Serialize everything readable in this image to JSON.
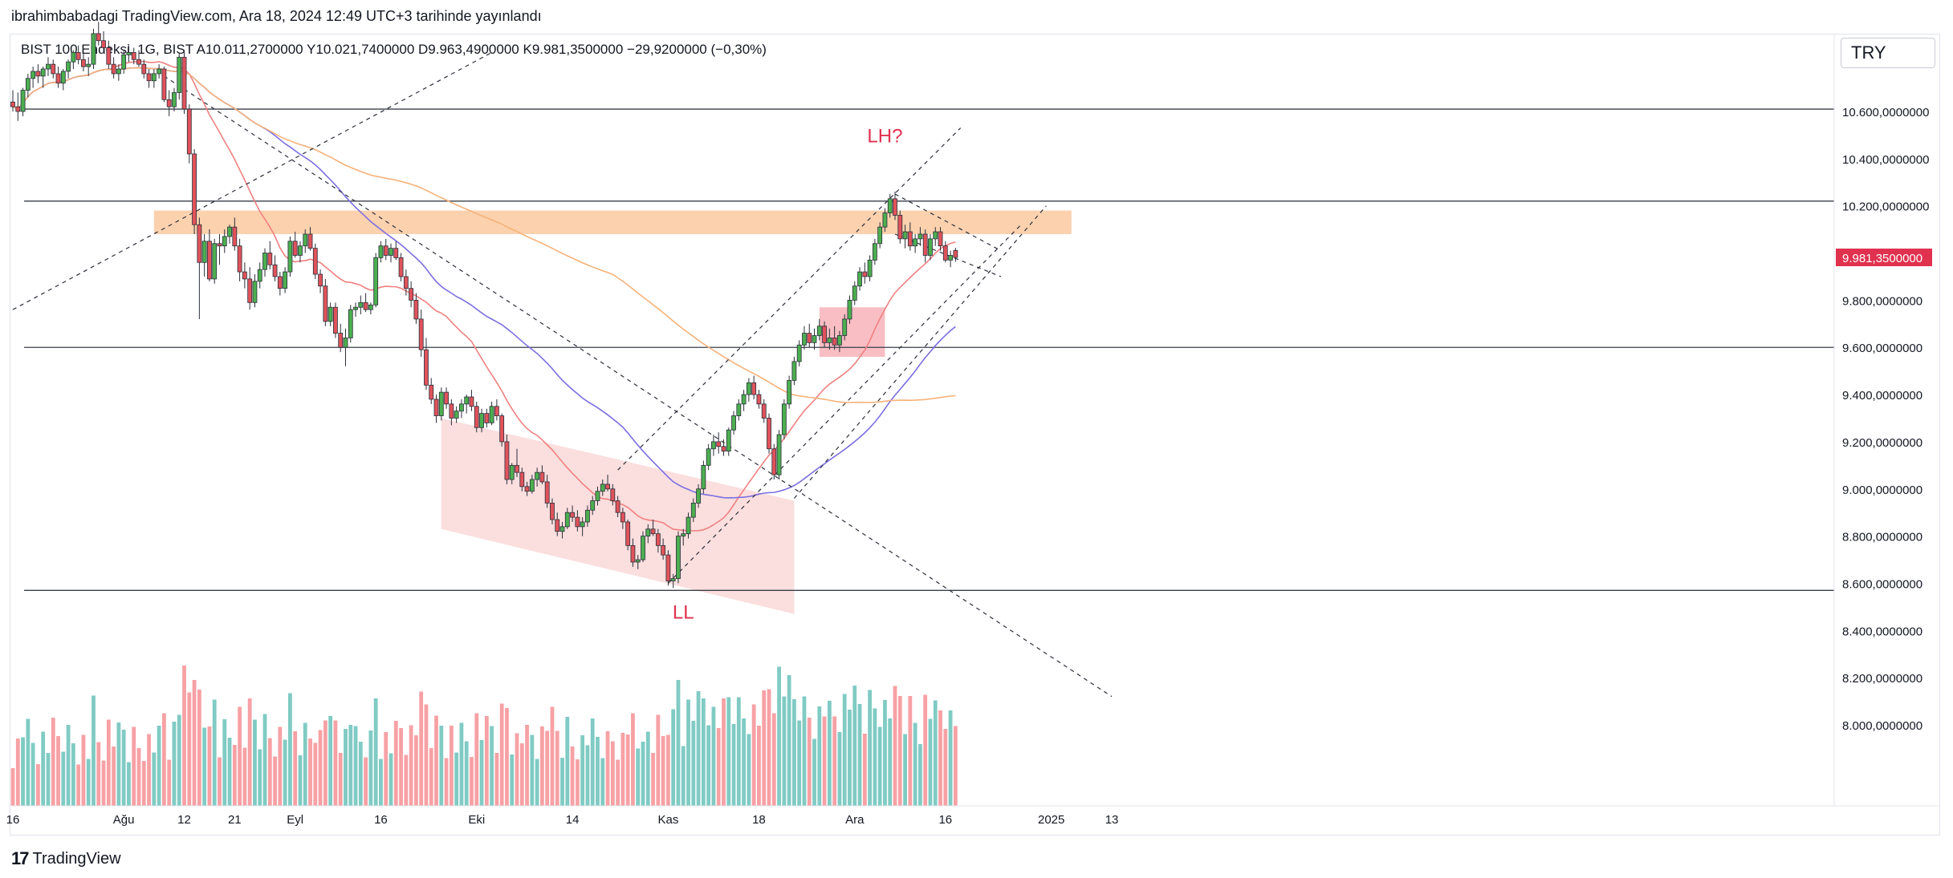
{
  "header": {
    "publish_line": "ibrahimbabadagi TradingView.com, Ara 18, 2024 12:49 UTC+3 tarihinde yayınlandı"
  },
  "toolbar": {
    "currency": "TRY"
  },
  "legend": {
    "symbol": "BIST 100 Endeksi, 1G, BIST",
    "open": "A10.011,2700000",
    "high": "Y10.021,7400000",
    "low": "D9.963,4900000",
    "close": "K9.981,3500000",
    "change": "−29,9200000 (−0,30%)"
  },
  "footer": {
    "logo_text": "TradingView"
  },
  "colors": {
    "up": "#26a69a",
    "up_candle": "#4caf50",
    "down": "#e0535b",
    "volume_up": "#80cbc4",
    "volume_down": "#f7a1a5",
    "ma_short": "#f08080",
    "ma_mid": "#7b6fe0",
    "ma_long": "#f5b27a",
    "zone_orange": "#fbc9a0",
    "zone_pink": "#fbdada",
    "label_red": "#e0314f",
    "last_price_bg": "#e0314f"
  },
  "chart_data": {
    "type": "candlestick",
    "symbol": "BIST 100 Endeksi",
    "y_axis": {
      "ticks": [
        "10.600,0000000",
        "10.400,0000000",
        "10.200,0000000",
        "9.981,3500000",
        "9.800,0000000",
        "9.600,0000000",
        "9.400,0000000",
        "9.200,0000000",
        "9.000,0000000",
        "8.800,0000000",
        "8.600,0000000",
        "8.400,0000000",
        "8.200,0000000",
        "8.000,0000000"
      ],
      "tick_values": [
        10600,
        10400,
        10200,
        9981.35,
        9800,
        9600,
        9400,
        9200,
        9000,
        8800,
        8600,
        8400,
        8200,
        8000
      ],
      "range": [
        7800,
        10850
      ]
    },
    "x_axis": {
      "ticks": [
        "16",
        "Ağu",
        "12",
        "21",
        "Eyl",
        "16",
        "Eki",
        "14",
        "Kas",
        "18",
        "Ara",
        "16",
        "2025",
        "13"
      ],
      "tick_bar_index": [
        0,
        22,
        34,
        44,
        56,
        73,
        92,
        111,
        130,
        148,
        167,
        185,
        206,
        218
      ]
    },
    "last_price": {
      "value": 9981.35,
      "label": "9.981,3500000"
    },
    "horizontal_levels": [
      10610,
      10220,
      9600,
      8570
    ],
    "annotations": [
      {
        "text": "LH?",
        "bar": 173,
        "price": 10470
      },
      {
        "text": "LL",
        "bar": 133,
        "price": 8450
      }
    ],
    "candles_ohlc": [
      [
        10640,
        10690,
        10600,
        10620
      ],
      [
        10620,
        10680,
        10560,
        10600
      ],
      [
        10600,
        10700,
        10580,
        10690
      ],
      [
        10690,
        10760,
        10660,
        10740
      ],
      [
        10740,
        10790,
        10700,
        10770
      ],
      [
        10770,
        10800,
        10720,
        10750
      ],
      [
        10750,
        10790,
        10700,
        10780
      ],
      [
        10780,
        10830,
        10750,
        10800
      ],
      [
        10800,
        10820,
        10740,
        10760
      ],
      [
        10760,
        10790,
        10700,
        10720
      ],
      [
        10720,
        10780,
        10690,
        10770
      ],
      [
        10770,
        10820,
        10740,
        10810
      ],
      [
        10810,
        10860,
        10780,
        10850
      ],
      [
        10850,
        10880,
        10800,
        10820
      ],
      [
        10820,
        10850,
        10770,
        10790
      ],
      [
        10790,
        10830,
        10750,
        10800
      ],
      [
        10800,
        10950,
        10780,
        10930
      ],
      [
        10930,
        10980,
        10880,
        10900
      ],
      [
        10900,
        10940,
        10850,
        10870
      ],
      [
        10870,
        10900,
        10780,
        10800
      ],
      [
        10800,
        10830,
        10740,
        10760
      ],
      [
        10760,
        10800,
        10730,
        10780
      ],
      [
        10780,
        10860,
        10760,
        10840
      ],
      [
        10840,
        10880,
        10810,
        10850
      ],
      [
        10850,
        10870,
        10800,
        10820
      ],
      [
        10820,
        10860,
        10790,
        10800
      ],
      [
        10800,
        10820,
        10740,
        10760
      ],
      [
        10760,
        10780,
        10700,
        10730
      ],
      [
        10730,
        10780,
        10700,
        10760
      ],
      [
        10760,
        10800,
        10740,
        10780
      ],
      [
        10780,
        10790,
        10640,
        10650
      ],
      [
        10650,
        10690,
        10580,
        10620
      ],
      [
        10620,
        10700,
        10600,
        10680
      ],
      [
        10680,
        10850,
        10650,
        10830
      ],
      [
        10830,
        10860,
        10590,
        10610
      ],
      [
        10610,
        10630,
        10380,
        10420
      ],
      [
        10420,
        10440,
        10080,
        10120
      ],
      [
        10120,
        10150,
        9720,
        9960
      ],
      [
        9960,
        10080,
        9900,
        10050
      ],
      [
        10050,
        10100,
        9880,
        9890
      ],
      [
        9890,
        10060,
        9870,
        10040
      ],
      [
        10040,
        10080,
        9950,
        10030
      ],
      [
        10030,
        10100,
        10000,
        10070
      ],
      [
        10070,
        10120,
        10040,
        10110
      ],
      [
        10110,
        10150,
        10010,
        10030
      ],
      [
        10030,
        10060,
        9880,
        9920
      ],
      [
        9920,
        9960,
        9850,
        9890
      ],
      [
        9890,
        9940,
        9760,
        9790
      ],
      [
        9790,
        9910,
        9770,
        9880
      ],
      [
        9880,
        9960,
        9850,
        9930
      ],
      [
        9930,
        10020,
        9900,
        10000
      ],
      [
        10000,
        10050,
        9930,
        9950
      ],
      [
        9950,
        9990,
        9880,
        9900
      ],
      [
        9900,
        9920,
        9820,
        9850
      ],
      [
        9850,
        9940,
        9830,
        9920
      ],
      [
        9920,
        10070,
        9900,
        10050
      ],
      [
        10050,
        10090,
        9980,
        9990
      ],
      [
        9990,
        10050,
        9960,
        10030
      ],
      [
        10030,
        10100,
        10000,
        10080
      ],
      [
        10080,
        10110,
        10010,
        10020
      ],
      [
        10020,
        10040,
        9890,
        9910
      ],
      [
        9910,
        9930,
        9830,
        9860
      ],
      [
        9860,
        9890,
        9690,
        9710
      ],
      [
        9710,
        9790,
        9690,
        9770
      ],
      [
        9770,
        9790,
        9640,
        9660
      ],
      [
        9660,
        9700,
        9580,
        9600
      ],
      [
        9600,
        9680,
        9520,
        9640
      ],
      [
        9640,
        9780,
        9620,
        9760
      ],
      [
        9760,
        9790,
        9730,
        9770
      ],
      [
        9770,
        9820,
        9740,
        9790
      ],
      [
        9790,
        9830,
        9750,
        9760
      ],
      [
        9760,
        9790,
        9740,
        9780
      ],
      [
        9780,
        10000,
        9770,
        9980
      ],
      [
        9980,
        10050,
        9960,
        10030
      ],
      [
        10030,
        10060,
        9970,
        9990
      ],
      [
        9990,
        10040,
        9960,
        10020
      ],
      [
        10020,
        10050,
        9970,
        9980
      ],
      [
        9980,
        10000,
        9880,
        9900
      ],
      [
        9900,
        9930,
        9820,
        9850
      ],
      [
        9850,
        9880,
        9770,
        9800
      ],
      [
        9800,
        9830,
        9700,
        9720
      ],
      [
        9720,
        9760,
        9560,
        9590
      ],
      [
        9590,
        9640,
        9420,
        9440
      ],
      [
        9440,
        9470,
        9360,
        9380
      ],
      [
        9380,
        9400,
        9280,
        9310
      ],
      [
        9310,
        9430,
        9290,
        9410
      ],
      [
        9410,
        9430,
        9340,
        9360
      ],
      [
        9360,
        9380,
        9270,
        9300
      ],
      [
        9300,
        9350,
        9280,
        9330
      ],
      [
        9330,
        9380,
        9300,
        9360
      ],
      [
        9360,
        9400,
        9320,
        9390
      ],
      [
        9390,
        9420,
        9330,
        9350
      ],
      [
        9350,
        9370,
        9240,
        9260
      ],
      [
        9260,
        9340,
        9240,
        9320
      ],
      [
        9320,
        9340,
        9260,
        9280
      ],
      [
        9280,
        9370,
        9270,
        9350
      ],
      [
        9350,
        9380,
        9290,
        9310
      ],
      [
        9310,
        9320,
        9180,
        9200
      ],
      [
        9200,
        9230,
        9020,
        9040
      ],
      [
        9040,
        9110,
        9020,
        9100
      ],
      [
        9100,
        9170,
        9050,
        9070
      ],
      [
        9070,
        9090,
        8990,
        9010
      ],
      [
        9010,
        9030,
        8970,
        8990
      ],
      [
        8990,
        9060,
        8980,
        9040
      ],
      [
        9040,
        9090,
        9010,
        9070
      ],
      [
        9070,
        9100,
        9020,
        9030
      ],
      [
        9030,
        9060,
        8920,
        8940
      ],
      [
        8940,
        8960,
        8850,
        8870
      ],
      [
        8870,
        8900,
        8800,
        8820
      ],
      [
        8820,
        8860,
        8790,
        8840
      ],
      [
        8840,
        8920,
        8830,
        8900
      ],
      [
        8900,
        8930,
        8860,
        8880
      ],
      [
        8880,
        8910,
        8820,
        8840
      ],
      [
        8840,
        8880,
        8800,
        8860
      ],
      [
        8860,
        8930,
        8840,
        8910
      ],
      [
        8910,
        8970,
        8890,
        8950
      ],
      [
        8950,
        9010,
        8930,
        8990
      ],
      [
        8990,
        9040,
        8970,
        9020
      ],
      [
        9020,
        9060,
        8990,
        9000
      ],
      [
        9000,
        9020,
        8930,
        8950
      ],
      [
        8950,
        8970,
        8880,
        8900
      ],
      [
        8900,
        8920,
        8830,
        8860
      ],
      [
        8860,
        8870,
        8740,
        8760
      ],
      [
        8760,
        8790,
        8670,
        8690
      ],
      [
        8690,
        8720,
        8660,
        8700
      ],
      [
        8700,
        8820,
        8690,
        8800
      ],
      [
        8800,
        8850,
        8770,
        8830
      ],
      [
        8830,
        8870,
        8800,
        8810
      ],
      [
        8810,
        8830,
        8730,
        8760
      ],
      [
        8760,
        8790,
        8700,
        8720
      ],
      [
        8720,
        8740,
        8590,
        8610
      ],
      [
        8610,
        8640,
        8580,
        8620
      ],
      [
        8620,
        8820,
        8600,
        8800
      ],
      [
        8800,
        8830,
        8760,
        8810
      ],
      [
        8810,
        8900,
        8790,
        8880
      ],
      [
        8880,
        8960,
        8860,
        8940
      ],
      [
        8940,
        9020,
        8920,
        9000
      ],
      [
        9000,
        9120,
        8980,
        9100
      ],
      [
        9100,
        9190,
        9080,
        9170
      ],
      [
        9170,
        9230,
        9140,
        9200
      ],
      [
        9200,
        9240,
        9150,
        9180
      ],
      [
        9180,
        9210,
        9140,
        9160
      ],
      [
        9160,
        9260,
        9140,
        9250
      ],
      [
        9250,
        9330,
        9230,
        9310
      ],
      [
        9310,
        9380,
        9290,
        9360
      ],
      [
        9360,
        9420,
        9330,
        9400
      ],
      [
        9400,
        9470,
        9370,
        9450
      ],
      [
        9450,
        9480,
        9380,
        9400
      ],
      [
        9400,
        9420,
        9340,
        9360
      ],
      [
        9360,
        9380,
        9280,
        9300
      ],
      [
        9300,
        9320,
        9150,
        9170
      ],
      [
        9170,
        9190,
        9040,
        9060
      ],
      [
        9060,
        9250,
        9040,
        9230
      ],
      [
        9230,
        9380,
        9210,
        9360
      ],
      [
        9360,
        9480,
        9340,
        9460
      ],
      [
        9460,
        9560,
        9440,
        9540
      ],
      [
        9540,
        9630,
        9520,
        9610
      ],
      [
        9610,
        9690,
        9590,
        9660
      ],
      [
        9660,
        9700,
        9600,
        9620
      ],
      [
        9620,
        9680,
        9590,
        9650
      ],
      [
        9650,
        9720,
        9630,
        9690
      ],
      [
        9690,
        9710,
        9600,
        9620
      ],
      [
        9620,
        9680,
        9590,
        9640
      ],
      [
        9640,
        9690,
        9590,
        9610
      ],
      [
        9610,
        9670,
        9580,
        9650
      ],
      [
        9650,
        9740,
        9630,
        9720
      ],
      [
        9720,
        9820,
        9700,
        9800
      ],
      [
        9800,
        9880,
        9780,
        9860
      ],
      [
        9860,
        9940,
        9840,
        9920
      ],
      [
        9920,
        9960,
        9870,
        9900
      ],
      [
        9900,
        9990,
        9880,
        9970
      ],
      [
        9970,
        10060,
        9950,
        10040
      ],
      [
        10040,
        10130,
        10020,
        10110
      ],
      [
        10110,
        10190,
        10090,
        10170
      ],
      [
        10170,
        10250,
        10150,
        10230
      ],
      [
        10230,
        10260,
        10140,
        10160
      ],
      [
        10160,
        10180,
        10040,
        10060
      ],
      [
        10060,
        10120,
        10020,
        10090
      ],
      [
        10090,
        10130,
        10010,
        10030
      ],
      [
        10030,
        10080,
        10000,
        10060
      ],
      [
        10060,
        10110,
        10030,
        10080
      ],
      [
        10080,
        10100,
        9960,
        9990
      ],
      [
        9990,
        10080,
        9970,
        10060
      ],
      [
        10060,
        10110,
        10030,
        10090
      ],
      [
        10090,
        10110,
        10010,
        10030
      ],
      [
        10030,
        10050,
        9960,
        9970
      ],
      [
        9970,
        10010,
        9940,
        9990
      ],
      [
        10011,
        10022,
        9963,
        9981
      ]
    ],
    "volume_histogram": "per-bar volume bars (up/down colored) with moving average line; no printed volume values"
  }
}
